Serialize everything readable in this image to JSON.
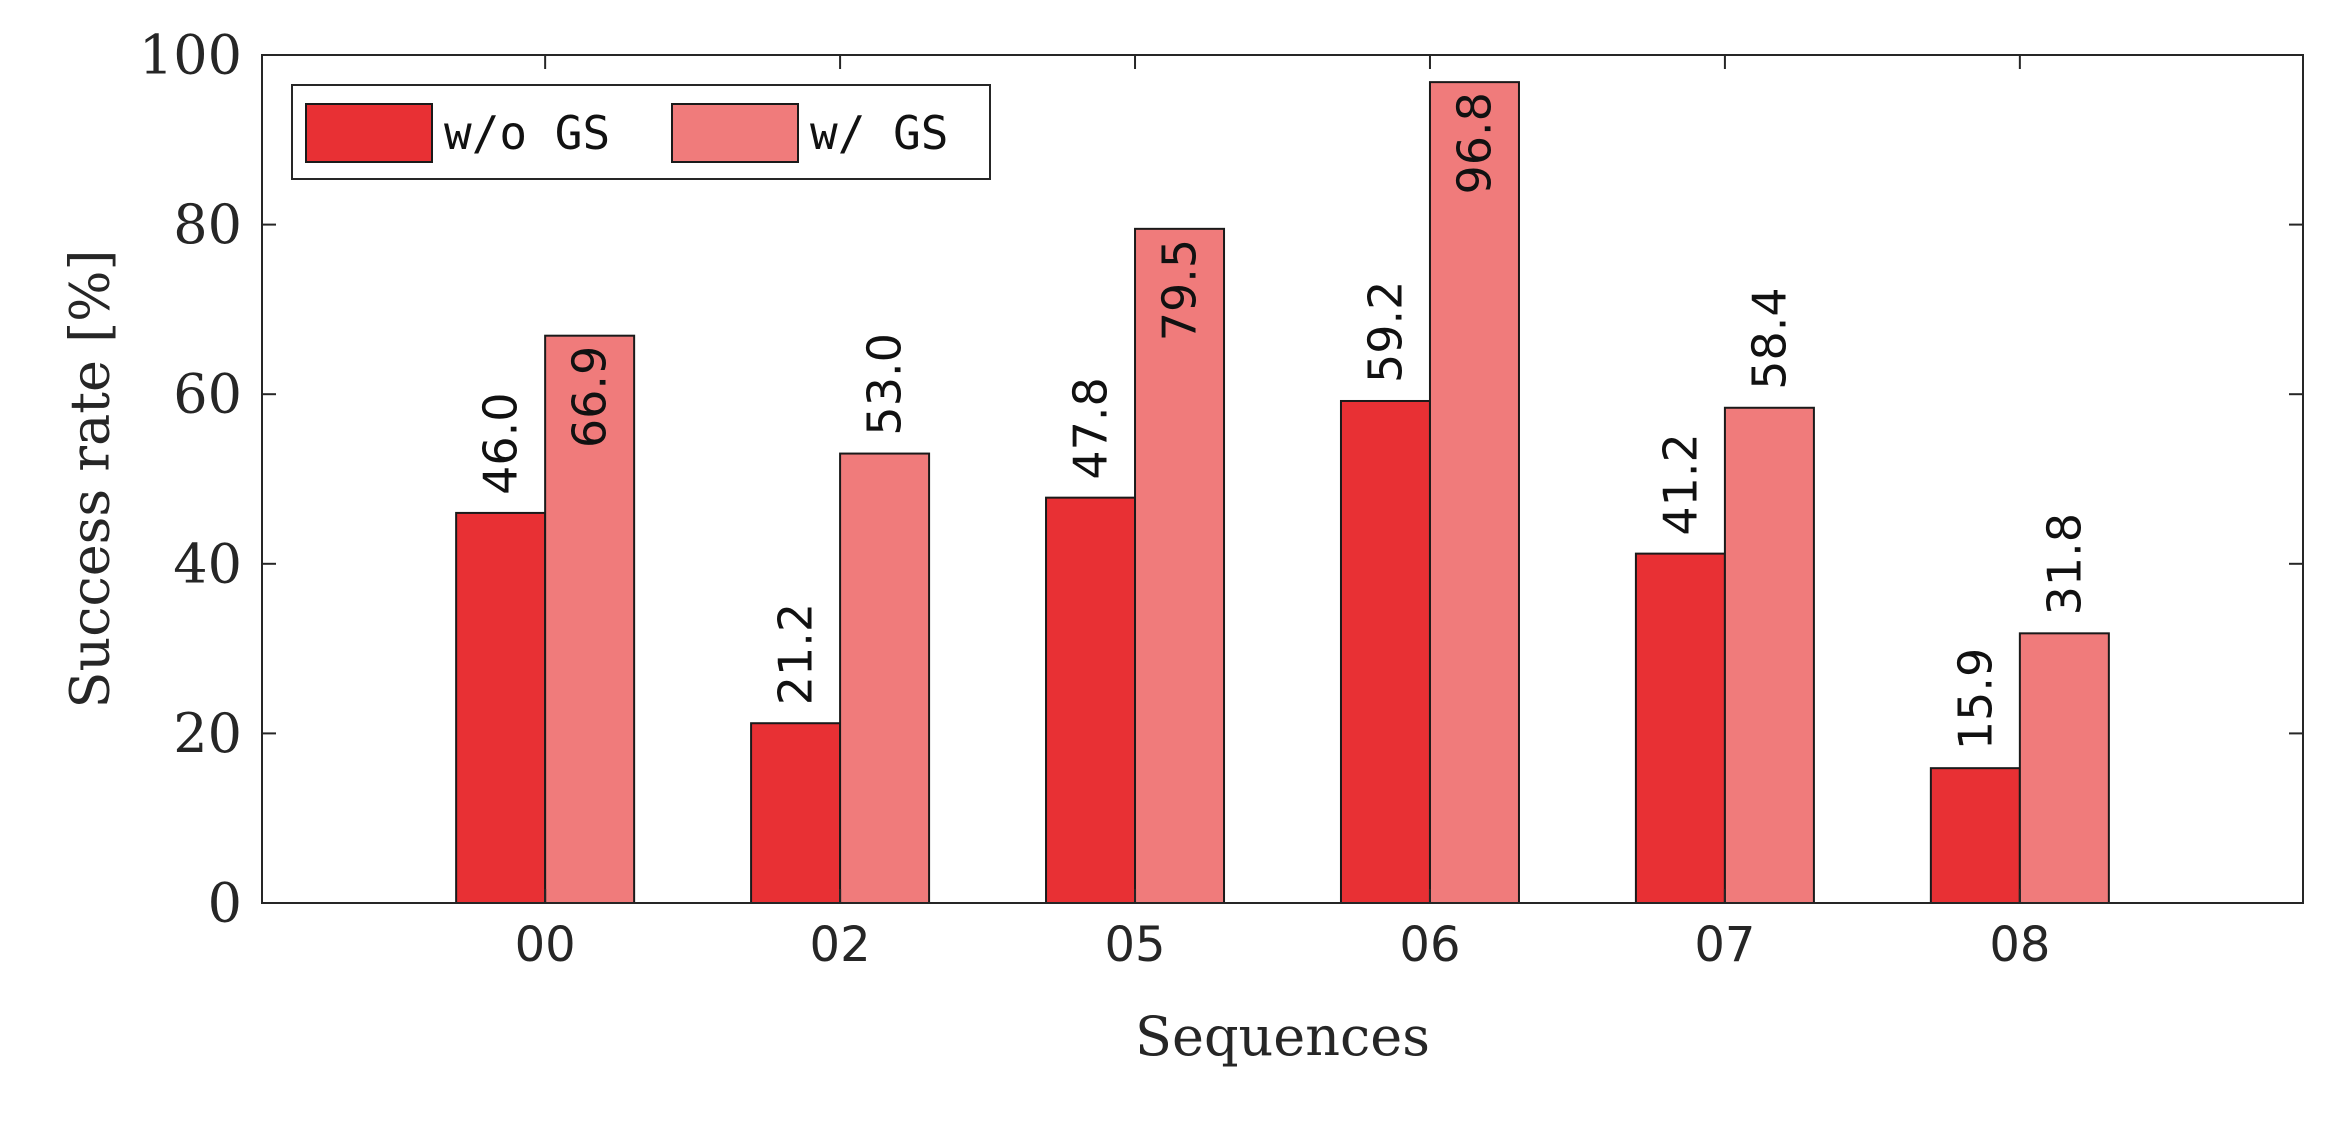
{
  "chart_data": {
    "type": "bar",
    "title": "",
    "xlabel": "Sequences",
    "ylabel": "Success rate [%]",
    "categories": [
      "00",
      "02",
      "05",
      "06",
      "07",
      "08"
    ],
    "ylim": [
      0,
      100
    ],
    "yticks": [
      0,
      20,
      40,
      60,
      80,
      100
    ],
    "grid": false,
    "legend_position": "top-left",
    "series": [
      {
        "name": "w/o GS",
        "values": [
          46.0,
          21.2,
          47.8,
          59.2,
          41.2,
          15.9
        ],
        "color": "#E83034"
      },
      {
        "name": "w/ GS",
        "values": [
          66.9,
          53.0,
          79.5,
          96.8,
          58.4,
          31.8
        ],
        "color": "#F07B7B"
      }
    ],
    "data_labels": {
      "series_0": [
        "46.0",
        "21.2",
        "47.8",
        "59.2",
        "41.2",
        "15.9"
      ],
      "series_1": [
        "66.9",
        "53.0",
        "79.5",
        "96.8",
        "58.4",
        "31.8"
      ]
    }
  },
  "colors": {
    "background": "#ffffff",
    "axis": "#262626",
    "bar_edge": "#1a1a1a"
  }
}
